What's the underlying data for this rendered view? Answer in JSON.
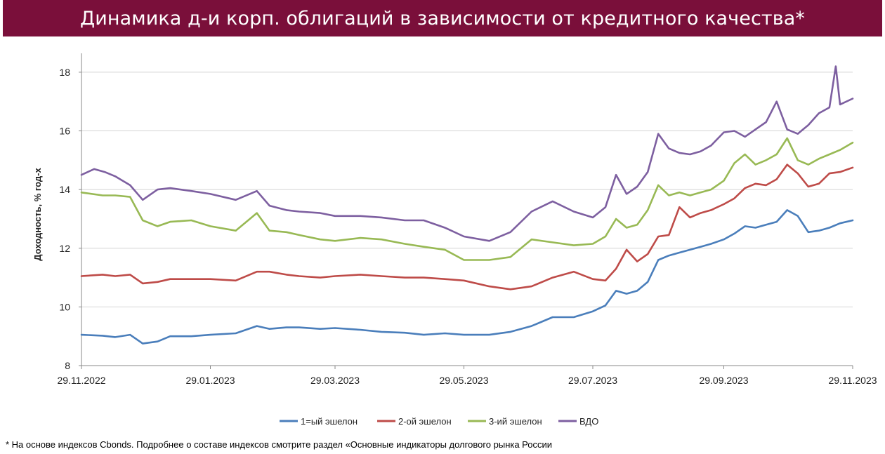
{
  "title": "Динамика д-и корп. облигаций в зависимости от кредитного качества*",
  "footnote": "* На основе индексов Cbonds. Подробнее о составе индексов смотрите раздел «Основные индикаторы долгового рынка России",
  "chart_data": {
    "type": "line",
    "title": "Динамика д-и корп. облигаций в зависимости от кредитного качества*",
    "xlabel": "",
    "ylabel": "Доходность, % год-х",
    "ylim": [
      8,
      18.5
    ],
    "yticks": [
      8,
      10,
      12,
      14,
      16,
      18
    ],
    "x_start": "2022-11-29",
    "x_end": "2023-11-29",
    "xticks": [
      "29.11.2022",
      "29.01.2023",
      "29.03.2023",
      "29.05.2023",
      "29.07.2023",
      "29.09.2023",
      "29.11.2023"
    ],
    "grid": "horizontal",
    "legend_position": "bottom",
    "series": [
      {
        "name": "1=ый эшелон",
        "color": "#4a7ebb",
        "x": [
          "2022-11-29",
          "2022-12-09",
          "2022-12-15",
          "2022-12-22",
          "2022-12-28",
          "2023-01-04",
          "2023-01-10",
          "2023-01-20",
          "2023-01-29",
          "2023-02-10",
          "2023-02-20",
          "2023-02-26",
          "2023-03-06",
          "2023-03-12",
          "2023-03-22",
          "2023-03-29",
          "2023-04-10",
          "2023-04-20",
          "2023-05-01",
          "2023-05-10",
          "2023-05-20",
          "2023-05-29",
          "2023-06-10",
          "2023-06-20",
          "2023-06-30",
          "2023-07-10",
          "2023-07-20",
          "2023-07-29",
          "2023-08-04",
          "2023-08-09",
          "2023-08-14",
          "2023-08-19",
          "2023-08-24",
          "2023-08-29",
          "2023-09-03",
          "2023-09-08",
          "2023-09-13",
          "2023-09-18",
          "2023-09-23",
          "2023-09-29",
          "2023-10-04",
          "2023-10-09",
          "2023-10-14",
          "2023-10-19",
          "2023-10-24",
          "2023-10-29",
          "2023-11-03",
          "2023-11-08",
          "2023-11-13",
          "2023-11-18",
          "2023-11-23",
          "2023-11-29"
        ],
        "values": [
          9.05,
          9.02,
          8.97,
          9.05,
          8.75,
          8.82,
          9.0,
          9.0,
          9.05,
          9.1,
          9.35,
          9.25,
          9.3,
          9.3,
          9.25,
          9.28,
          9.22,
          9.15,
          9.12,
          9.05,
          9.1,
          9.05,
          9.05,
          9.15,
          9.35,
          9.65,
          9.65,
          9.85,
          10.05,
          10.55,
          10.45,
          10.55,
          10.85,
          11.6,
          11.75,
          11.85,
          11.95,
          12.05,
          12.15,
          12.3,
          12.5,
          12.75,
          12.7,
          12.8,
          12.9,
          13.3,
          13.1,
          12.55,
          12.6,
          12.7,
          12.85,
          12.95
        ]
      },
      {
        "name": "2-ой эшелон",
        "color": "#be4b48",
        "x": [
          "2022-11-29",
          "2022-12-09",
          "2022-12-15",
          "2022-12-22",
          "2022-12-28",
          "2023-01-04",
          "2023-01-10",
          "2023-01-20",
          "2023-01-29",
          "2023-02-10",
          "2023-02-20",
          "2023-02-26",
          "2023-03-06",
          "2023-03-12",
          "2023-03-22",
          "2023-03-29",
          "2023-04-10",
          "2023-04-20",
          "2023-05-01",
          "2023-05-10",
          "2023-05-20",
          "2023-05-29",
          "2023-06-10",
          "2023-06-20",
          "2023-06-30",
          "2023-07-10",
          "2023-07-20",
          "2023-07-29",
          "2023-08-04",
          "2023-08-09",
          "2023-08-14",
          "2023-08-19",
          "2023-08-24",
          "2023-08-29",
          "2023-09-03",
          "2023-09-08",
          "2023-09-13",
          "2023-09-18",
          "2023-09-23",
          "2023-09-29",
          "2023-10-04",
          "2023-10-09",
          "2023-10-14",
          "2023-10-19",
          "2023-10-24",
          "2023-10-29",
          "2023-11-03",
          "2023-11-08",
          "2023-11-13",
          "2023-11-18",
          "2023-11-23",
          "2023-11-29"
        ],
        "values": [
          11.05,
          11.1,
          11.05,
          11.1,
          10.8,
          10.85,
          10.95,
          10.95,
          10.95,
          10.9,
          11.2,
          11.2,
          11.1,
          11.05,
          11.0,
          11.05,
          11.1,
          11.05,
          11.0,
          11.0,
          10.95,
          10.9,
          10.7,
          10.6,
          10.7,
          11.0,
          11.2,
          10.95,
          10.9,
          11.3,
          11.95,
          11.55,
          11.8,
          12.4,
          12.45,
          13.4,
          13.05,
          13.2,
          13.3,
          13.5,
          13.7,
          14.05,
          14.2,
          14.15,
          14.35,
          14.85,
          14.55,
          14.1,
          14.2,
          14.55,
          14.6,
          14.75
        ]
      },
      {
        "name": "3-ий эшелон",
        "color": "#98b954",
        "x": [
          "2022-11-29",
          "2022-12-09",
          "2022-12-15",
          "2022-12-22",
          "2022-12-28",
          "2023-01-04",
          "2023-01-10",
          "2023-01-20",
          "2023-01-29",
          "2023-02-10",
          "2023-02-20",
          "2023-02-26",
          "2023-03-06",
          "2023-03-12",
          "2023-03-22",
          "2023-03-29",
          "2023-04-10",
          "2023-04-20",
          "2023-05-01",
          "2023-05-10",
          "2023-05-20",
          "2023-05-29",
          "2023-06-10",
          "2023-06-20",
          "2023-06-30",
          "2023-07-10",
          "2023-07-20",
          "2023-07-29",
          "2023-08-04",
          "2023-08-09",
          "2023-08-14",
          "2023-08-19",
          "2023-08-24",
          "2023-08-29",
          "2023-09-03",
          "2023-09-08",
          "2023-09-13",
          "2023-09-18",
          "2023-09-23",
          "2023-09-29",
          "2023-10-04",
          "2023-10-09",
          "2023-10-14",
          "2023-10-19",
          "2023-10-24",
          "2023-10-29",
          "2023-11-03",
          "2023-11-08",
          "2023-11-13",
          "2023-11-18",
          "2023-11-23",
          "2023-11-29"
        ],
        "values": [
          13.9,
          13.8,
          13.8,
          13.75,
          12.95,
          12.75,
          12.9,
          12.95,
          12.75,
          12.6,
          13.2,
          12.6,
          12.55,
          12.45,
          12.3,
          12.25,
          12.35,
          12.3,
          12.15,
          12.05,
          11.95,
          11.6,
          11.6,
          11.7,
          12.3,
          12.2,
          12.1,
          12.15,
          12.4,
          13.0,
          12.7,
          12.8,
          13.3,
          14.15,
          13.8,
          13.9,
          13.8,
          13.9,
          14.0,
          14.3,
          14.9,
          15.2,
          14.85,
          15.0,
          15.2,
          15.75,
          15.0,
          14.85,
          15.05,
          15.2,
          15.35,
          15.6
        ]
      },
      {
        "name": "ВДО",
        "color": "#7d5fa0",
        "x": [
          "2022-11-29",
          "2022-12-05",
          "2022-12-10",
          "2022-12-15",
          "2022-12-22",
          "2022-12-28",
          "2023-01-04",
          "2023-01-10",
          "2023-01-20",
          "2023-01-29",
          "2023-02-10",
          "2023-02-20",
          "2023-02-26",
          "2023-03-06",
          "2023-03-12",
          "2023-03-22",
          "2023-03-29",
          "2023-04-10",
          "2023-04-20",
          "2023-05-01",
          "2023-05-10",
          "2023-05-20",
          "2023-05-29",
          "2023-06-10",
          "2023-06-20",
          "2023-06-30",
          "2023-07-10",
          "2023-07-20",
          "2023-07-29",
          "2023-08-04",
          "2023-08-09",
          "2023-08-14",
          "2023-08-19",
          "2023-08-24",
          "2023-08-29",
          "2023-09-03",
          "2023-09-08",
          "2023-09-13",
          "2023-09-18",
          "2023-09-23",
          "2023-09-29",
          "2023-10-04",
          "2023-10-09",
          "2023-10-14",
          "2023-10-19",
          "2023-10-24",
          "2023-10-29",
          "2023-11-03",
          "2023-11-08",
          "2023-11-13",
          "2023-11-18",
          "2023-11-21",
          "2023-11-23",
          "2023-11-29"
        ],
        "values": [
          14.5,
          14.7,
          14.6,
          14.45,
          14.15,
          13.65,
          14.0,
          14.05,
          13.95,
          13.85,
          13.65,
          13.95,
          13.45,
          13.3,
          13.25,
          13.2,
          13.1,
          13.1,
          13.05,
          12.95,
          12.95,
          12.7,
          12.4,
          12.25,
          12.55,
          13.25,
          13.6,
          13.25,
          13.05,
          13.4,
          14.5,
          13.85,
          14.1,
          14.6,
          15.9,
          15.4,
          15.25,
          15.2,
          15.3,
          15.5,
          15.95,
          16.0,
          15.8,
          16.05,
          16.3,
          17.0,
          16.05,
          15.9,
          16.2,
          16.6,
          16.8,
          18.2,
          16.9,
          17.1
        ]
      }
    ]
  }
}
